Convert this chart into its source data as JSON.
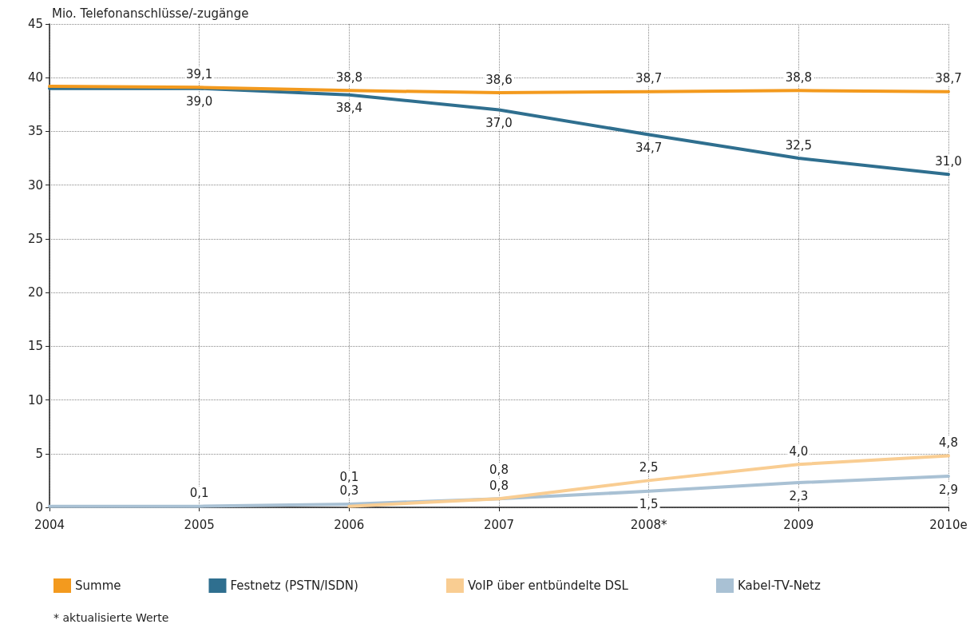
{
  "chart_data": {
    "type": "line",
    "ylabel": "Mio. Telefonanschlüsse/-zugänge",
    "categories": [
      "2004",
      "2005",
      "2006",
      "2007",
      "2008*",
      "2009",
      "2010e"
    ],
    "series": [
      {
        "name": "Summe",
        "color": "#f39a1e",
        "values": [
          39.2,
          39.1,
          38.8,
          38.6,
          38.7,
          38.8,
          38.7
        ],
        "value_labels": [
          null,
          "39,1",
          "38,8",
          "38,6",
          "38,7",
          "38,8",
          "38,7"
        ]
      },
      {
        "name": "Festnetz (PSTN/ISDN)",
        "color": "#2f6f8f",
        "values": [
          39.0,
          39.0,
          38.4,
          37.0,
          34.7,
          32.5,
          31.0
        ],
        "value_labels": [
          null,
          "39,0",
          "38,4",
          "37,0",
          "34,7",
          "32,5",
          "31,0"
        ]
      },
      {
        "name": "VoIP über entbündelte DSL",
        "color": "#f9cd92",
        "values": [
          null,
          null,
          0.1,
          0.8,
          2.5,
          4.0,
          4.8
        ],
        "value_labels": [
          null,
          null,
          "0,1",
          "0,8",
          "2,5",
          "4,0",
          "4,8"
        ]
      },
      {
        "name": "Kabel-TV-Netz",
        "color": "#a9c1d4",
        "values": [
          0.1,
          0.1,
          0.3,
          0.8,
          1.5,
          2.3,
          2.9
        ],
        "value_labels": [
          null,
          "0,1",
          "0,3",
          "0,8",
          "1,5",
          "2,3",
          "2,9"
        ]
      }
    ],
    "ylim": [
      0,
      45
    ],
    "yticks": [
      0,
      5,
      10,
      15,
      20,
      25,
      30,
      35,
      40,
      45
    ],
    "grid": true,
    "legend": "bottom",
    "marker": "none",
    "line_style": "solid",
    "annotations": [
      "* aktualisierte Werte"
    ]
  }
}
